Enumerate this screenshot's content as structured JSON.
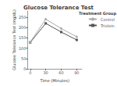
{
  "chart_data": {
    "type": "line",
    "title": "Glucose Tolerance Test",
    "xlabel": "Time (Minutes)",
    "ylabel": "Glucose Tolerance Test (mg/dL)",
    "x": [
      0,
      30,
      60,
      90
    ],
    "series": [
      {
        "name": "Control",
        "color": "#aaaaaa",
        "marker": "circle",
        "values": [
          130,
          240,
          195,
          155
        ]
      },
      {
        "name": "Triolein",
        "color": "#555555",
        "marker": "square",
        "values": [
          128,
          220,
          178,
          140
        ]
      }
    ],
    "xlim": [
      -5,
      100
    ],
    "xticks": [
      0,
      30,
      60,
      90
    ],
    "ylim": [
      0,
      280
    ],
    "yticks": [
      0,
      50,
      100,
      150,
      200,
      250
    ],
    "grid": false,
    "legend": "right",
    "legend_title": "Treatment Group"
  }
}
